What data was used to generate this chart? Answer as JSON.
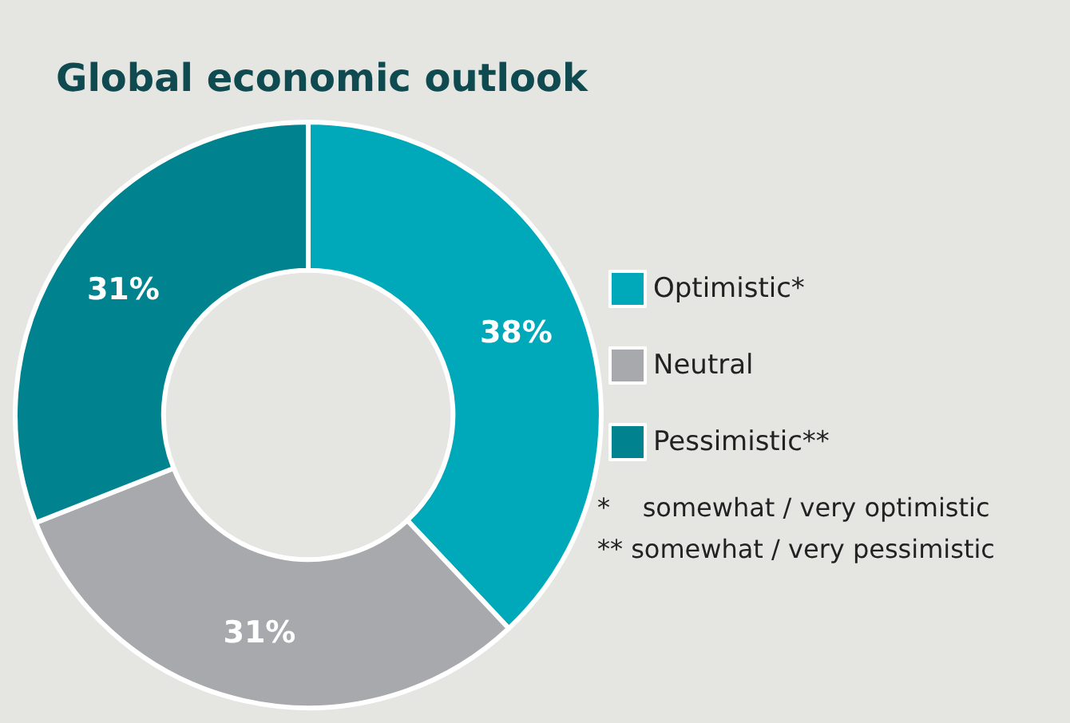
{
  "chart_data": {
    "type": "donut",
    "title": "Global economic outlook",
    "categories": [
      "Optimistic*",
      "Neutral",
      "Pessimistic**"
    ],
    "values": [
      38,
      31,
      31
    ],
    "colors": [
      "#00a9b9",
      "#a7a9ac",
      "#00838f"
    ],
    "value_labels": [
      "38%",
      "31%",
      "31%"
    ],
    "legend": "right",
    "annotations": [
      "*    somewhat / very optimistic",
      "** somewhat / very pessimistic"
    ]
  }
}
